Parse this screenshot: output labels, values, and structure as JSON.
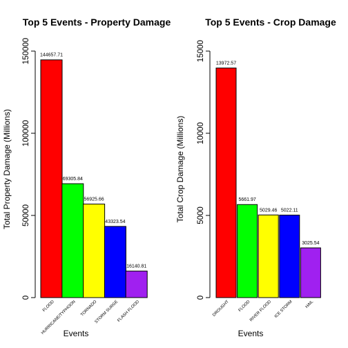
{
  "chart_data": [
    {
      "type": "bar",
      "title": "Top 5 Events - Property Damage",
      "xlabel": "Events",
      "ylabel": "Total Property Damage (Millions)",
      "ylim": [
        0,
        150000
      ],
      "yticks": [
        "0",
        "50000",
        "100000",
        "150000"
      ],
      "categories": [
        "FLOOD",
        "HURRICANE/TYPHOON",
        "TORNADO",
        "STORM SURGE",
        "FLASH FLOOD"
      ],
      "values": [
        144657.71,
        69305.84,
        56925.66,
        43323.54,
        16140.81
      ],
      "labels": [
        "144657.71",
        "69305.84",
        "56925.66",
        "43323.54",
        "16140.81"
      ],
      "colors": [
        "#ff0000",
        "#00ff00",
        "#ffff00",
        "#0000ff",
        "#a020f0"
      ]
    },
    {
      "type": "bar",
      "title": "Top 5 Events - Crop Damage",
      "xlabel": "Events",
      "ylabel": "Total Crop Damage (Millions)",
      "ylim": [
        0,
        15000
      ],
      "yticks": [
        "0",
        "5000",
        "10000",
        "15000"
      ],
      "categories": [
        "DROUGHT",
        "FLOOD",
        "RIVER FLOOD",
        "ICE STORM",
        "HAIL"
      ],
      "values": [
        13972.57,
        5661.97,
        5029.46,
        5022.11,
        3025.54
      ],
      "labels": [
        "13972.57",
        "5661.97",
        "5029.46",
        "5022.11",
        "3025.54"
      ],
      "colors": [
        "#ff0000",
        "#00ff00",
        "#ffff00",
        "#0000ff",
        "#a020f0"
      ]
    }
  ]
}
